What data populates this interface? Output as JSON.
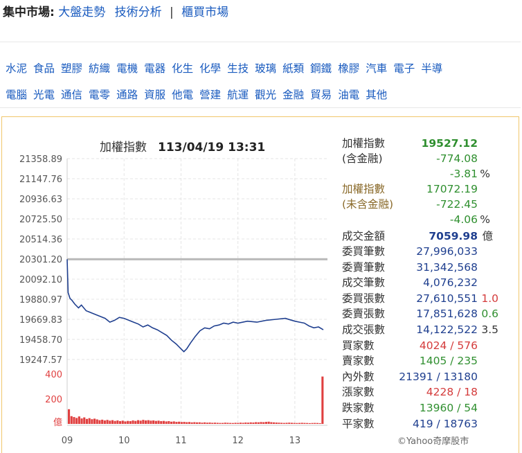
{
  "nav": {
    "label": "集中市場:",
    "links": [
      "大盤走勢",
      "技術分析"
    ],
    "separator": "|",
    "otc_link": "櫃買市場"
  },
  "categories": {
    "row1": [
      "水泥",
      "食品",
      "塑膠",
      "紡織",
      "電機",
      "電器",
      "化生",
      "化學",
      "生技",
      "玻璃",
      "紙類",
      "鋼鐵",
      "橡膠",
      "汽車",
      "電子",
      "半導"
    ],
    "row2": [
      "電腦",
      "光電",
      "通信",
      "電零",
      "通路",
      "資服",
      "他電",
      "營建",
      "航運",
      "觀光",
      "金融",
      "貿易",
      "油電",
      "其他"
    ]
  },
  "chart_data": {
    "type": "line",
    "title": "加權指數",
    "timestamp": "113/04/19 13:31",
    "y_ticks": [
      "21358.89",
      "21147.76",
      "20936.63",
      "20725.50",
      "20514.36",
      "20301.20",
      "20092.10",
      "19880.97",
      "19669.83",
      "19458.70",
      "19247.57"
    ],
    "ylim": [
      19247.57,
      21358.89
    ],
    "reference": 20301.2,
    "x_ticks": [
      "09",
      "10",
      "11",
      "12",
      "13"
    ],
    "time_range": [
      "09:00",
      "13:30"
    ],
    "series": [
      {
        "points": [
          [
            "09:00",
            20301.2
          ],
          [
            "09:01",
            19950
          ],
          [
            "09:03",
            19890
          ],
          [
            "09:05",
            19870
          ],
          [
            "09:08",
            19830
          ],
          [
            "09:12",
            19790
          ],
          [
            "09:15",
            19820
          ],
          [
            "09:20",
            19760
          ],
          [
            "09:25",
            19740
          ],
          [
            "09:30",
            19720
          ],
          [
            "09:35",
            19700
          ],
          [
            "09:40",
            19680
          ],
          [
            "09:45",
            19640
          ],
          [
            "09:50",
            19660
          ],
          [
            "09:55",
            19690
          ],
          [
            "10:00",
            19680
          ],
          [
            "10:05",
            19660
          ],
          [
            "10:10",
            19640
          ],
          [
            "10:15",
            19620
          ],
          [
            "10:20",
            19590
          ],
          [
            "10:25",
            19610
          ],
          [
            "10:30",
            19580
          ],
          [
            "10:35",
            19560
          ],
          [
            "10:40",
            19530
          ],
          [
            "10:45",
            19500
          ],
          [
            "10:50",
            19450
          ],
          [
            "10:55",
            19410
          ],
          [
            "11:00",
            19360
          ],
          [
            "11:03",
            19330
          ],
          [
            "11:06",
            19360
          ],
          [
            "11:10",
            19420
          ],
          [
            "11:15",
            19490
          ],
          [
            "11:20",
            19550
          ],
          [
            "11:25",
            19580
          ],
          [
            "11:30",
            19570
          ],
          [
            "11:35",
            19600
          ],
          [
            "11:40",
            19610
          ],
          [
            "11:45",
            19630
          ],
          [
            "11:50",
            19620
          ],
          [
            "11:55",
            19640
          ],
          [
            "12:00",
            19630
          ],
          [
            "12:10",
            19650
          ],
          [
            "12:20",
            19640
          ],
          [
            "12:30",
            19660
          ],
          [
            "12:40",
            19670
          ],
          [
            "12:50",
            19680
          ],
          [
            "12:55",
            19665
          ],
          [
            "13:00",
            19650
          ],
          [
            "13:05",
            19640
          ],
          [
            "13:10",
            19630
          ],
          [
            "13:15",
            19600
          ],
          [
            "13:20",
            19580
          ],
          [
            "13:25",
            19590
          ],
          [
            "13:30",
            19560
          ]
        ]
      }
    ],
    "volume": {
      "label": "億",
      "ticks": [
        "400",
        "200"
      ],
      "max": 400,
      "bars_approx": [
        118,
        62,
        55,
        48,
        60,
        44,
        52,
        40,
        46,
        38,
        42,
        36,
        30,
        34,
        28,
        32,
        26,
        30,
        24,
        28,
        22,
        26,
        20,
        24,
        22,
        28,
        24,
        30,
        26,
        32,
        28,
        30,
        26,
        28,
        24,
        26,
        22,
        24,
        20,
        22,
        18,
        20,
        16,
        18,
        15,
        16,
        14,
        15,
        12,
        14,
        12,
        13,
        10,
        12,
        10,
        11,
        9,
        10,
        9,
        8,
        8,
        10,
        9,
        8,
        7,
        9,
        8,
        10,
        9,
        11,
        10,
        12,
        11,
        14,
        13,
        15,
        14,
        16,
        18,
        14,
        12,
        11,
        10,
        9,
        8,
        9,
        10,
        9,
        8,
        7,
        8,
        9,
        8,
        7,
        6,
        7,
        8,
        7,
        6,
        380
      ]
    }
  },
  "stats": {
    "taiex_label1": "加權指數",
    "taiex_label2": "(含金融)",
    "taiex_value": "19527.12",
    "taiex_change": "-774.08",
    "taiex_pct": "-3.81",
    "pct_sign": "%",
    "ex_label1": "加權指數",
    "ex_label2": "(未含金融)",
    "ex_value": "17072.19",
    "ex_change": "-722.45",
    "ex_pct": "-4.06",
    "turnover_label": "成交金額",
    "turnover_value": "7059.98",
    "turnover_unit": "億",
    "rows": [
      {
        "k": "委買筆數",
        "v": "27,996,033",
        "x": ""
      },
      {
        "k": "委賣筆數",
        "v": "31,342,568",
        "x": ""
      },
      {
        "k": "成交筆數",
        "v": "4,076,232",
        "x": ""
      },
      {
        "k": "委買張數",
        "v": "27,610,551",
        "x": "1.0"
      },
      {
        "k": "委賣張數",
        "v": "17,851,628",
        "x": "0.6"
      },
      {
        "k": "成交張數",
        "v": "14,122,522",
        "x": "3.5"
      },
      {
        "k": "買家數",
        "v": "4024 / 576",
        "x": ""
      },
      {
        "k": "賣家數",
        "v": "1405 / 235",
        "x": ""
      },
      {
        "k": "內外數",
        "v": "21391 / 13180",
        "x": ""
      },
      {
        "k": "漲家數",
        "v": "4228 / 18",
        "x": ""
      },
      {
        "k": "跌家數",
        "v": "13960 / 54",
        "x": ""
      },
      {
        "k": "平家數",
        "v": "419 / 18763",
        "x": ""
      }
    ],
    "copyright": "©Yahoo奇摩股市"
  },
  "colors": {
    "line": "#1f3f8f",
    "reference": "#b8b8b8",
    "volume": "#e04040",
    "link": "#1a5bbf",
    "panel_border": "#f0c66a"
  }
}
